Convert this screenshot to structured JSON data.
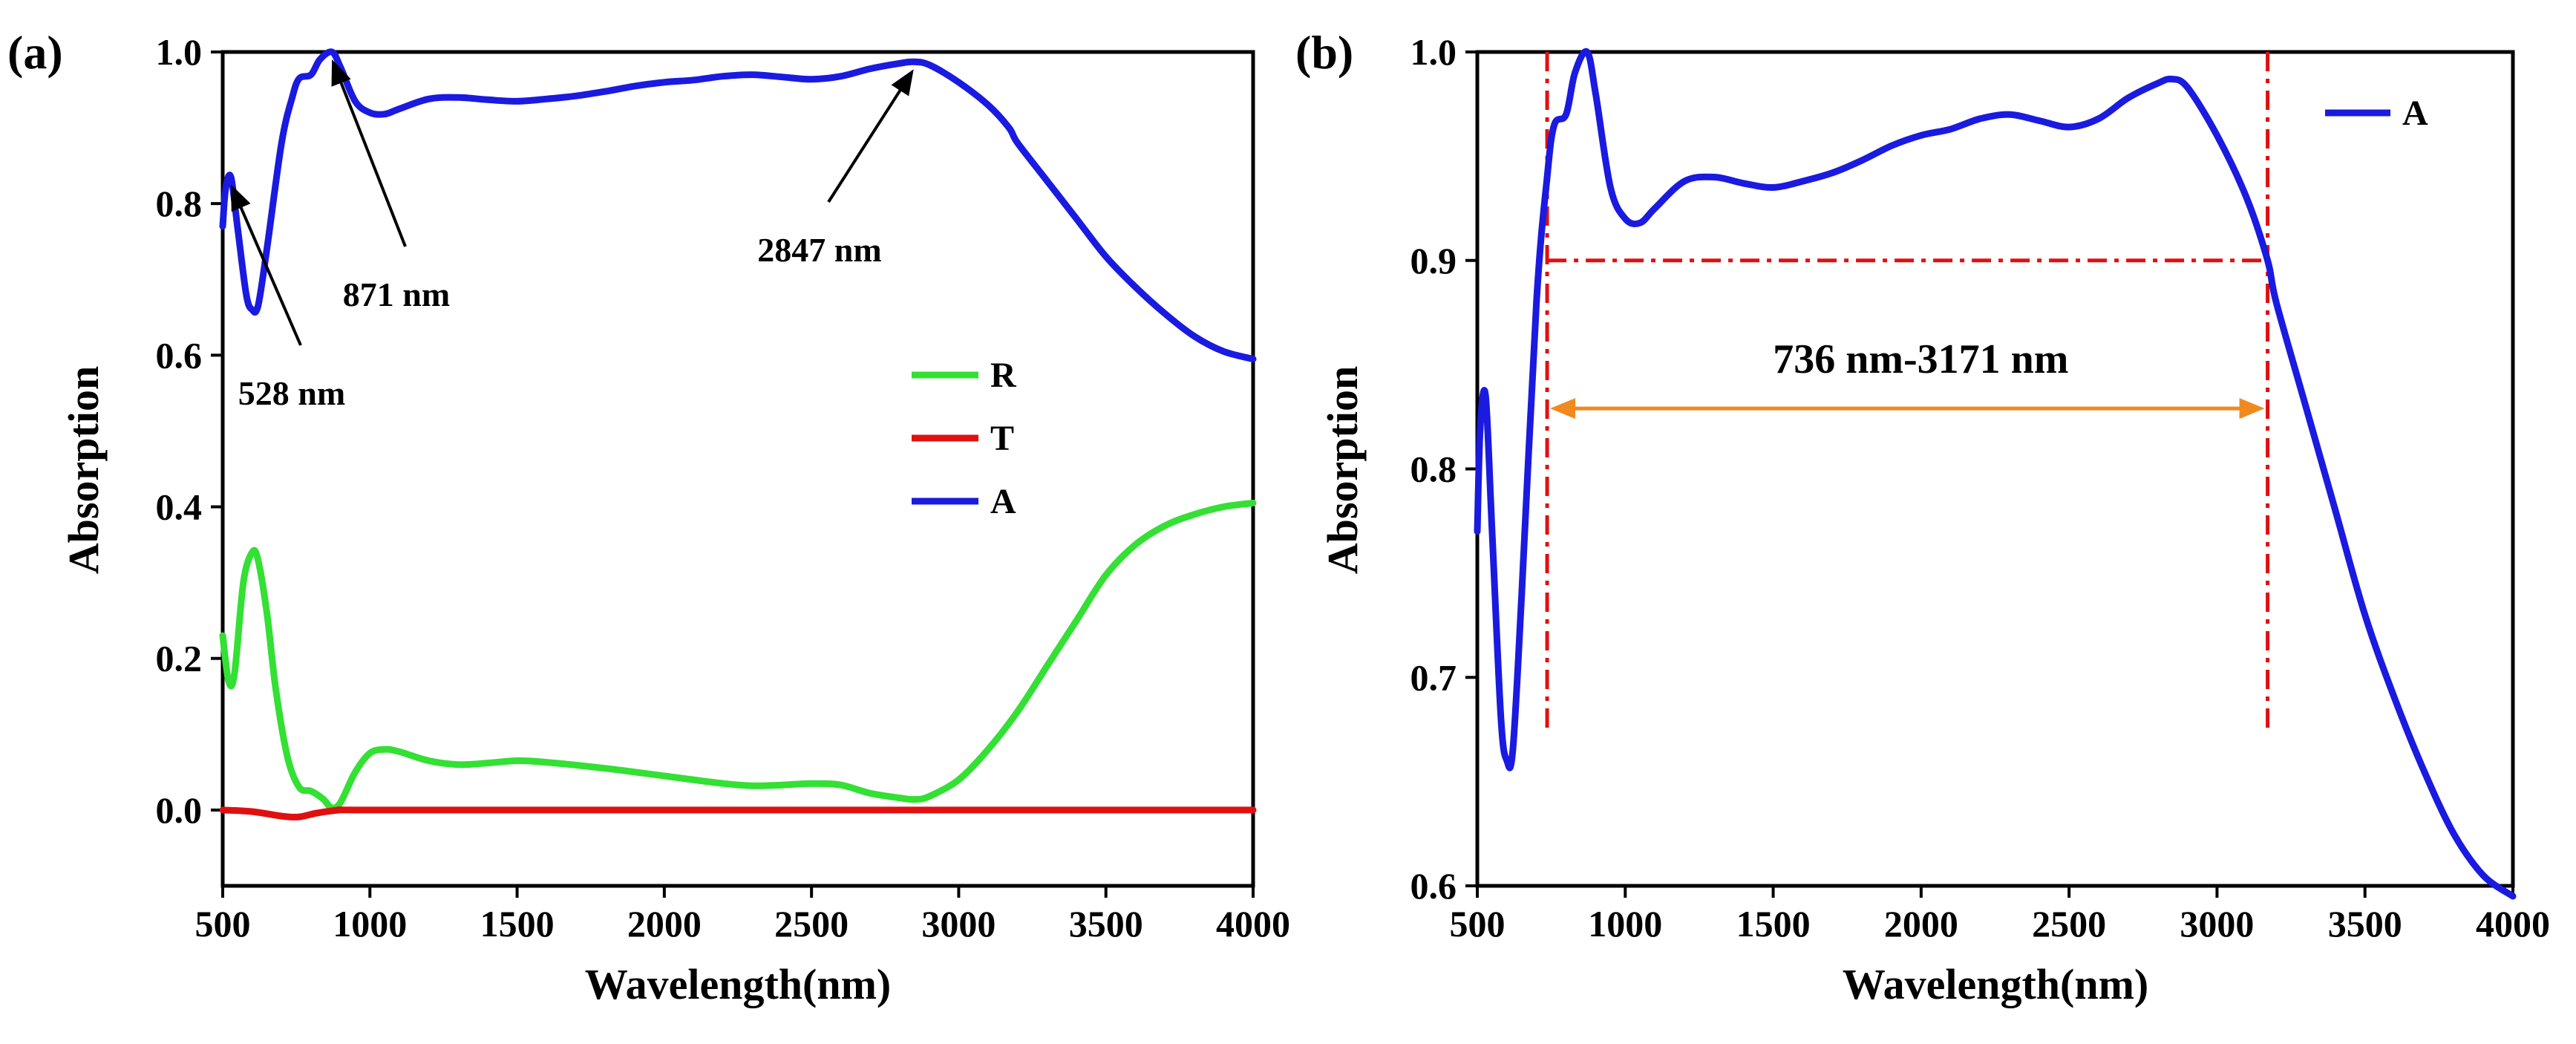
{
  "chart_data": [
    {
      "panel": "(a)",
      "type": "line",
      "xlabel": "Wavelength(nm)",
      "ylabel": "Absorption",
      "xlim": [
        500,
        4000
      ],
      "ylim": [
        -0.1,
        1.0
      ],
      "xticks": [
        500,
        1000,
        1500,
        2000,
        2500,
        3000,
        3500,
        4000
      ],
      "xtick_labels": [
        "500",
        "1000",
        "1500",
        "2000",
        "2500",
        "3000",
        "3500",
        "4000"
      ],
      "yticks": [
        0.0,
        0.2,
        0.4,
        0.6,
        0.8,
        1.0
      ],
      "ytick_labels": [
        "0.0",
        "0.2",
        "0.4",
        "0.6",
        "0.8",
        "1.0"
      ],
      "legend_position": "middle-right",
      "series": [
        {
          "name": "R",
          "color": "#33e033",
          "points": [
            [
              500,
              0.23
            ],
            [
              520,
              0.17
            ],
            [
              540,
              0.18
            ],
            [
              570,
              0.3
            ],
            [
              600,
              0.34
            ],
            [
              620,
              0.33
            ],
            [
              650,
              0.26
            ],
            [
              680,
              0.16
            ],
            [
              720,
              0.07
            ],
            [
              760,
              0.03
            ],
            [
              800,
              0.025
            ],
            [
              840,
              0.015
            ],
            [
              870,
              0.003
            ],
            [
              900,
              0.01
            ],
            [
              950,
              0.05
            ],
            [
              1000,
              0.075
            ],
            [
              1050,
              0.08
            ],
            [
              1100,
              0.077
            ],
            [
              1200,
              0.065
            ],
            [
              1300,
              0.06
            ],
            [
              1400,
              0.062
            ],
            [
              1500,
              0.065
            ],
            [
              1600,
              0.063
            ],
            [
              1800,
              0.055
            ],
            [
              2000,
              0.045
            ],
            [
              2200,
              0.035
            ],
            [
              2300,
              0.032
            ],
            [
              2400,
              0.033
            ],
            [
              2500,
              0.035
            ],
            [
              2600,
              0.033
            ],
            [
              2700,
              0.022
            ],
            [
              2800,
              0.016
            ],
            [
              2850,
              0.014
            ],
            [
              2900,
              0.018
            ],
            [
              3000,
              0.04
            ],
            [
              3100,
              0.08
            ],
            [
              3200,
              0.13
            ],
            [
              3300,
              0.19
            ],
            [
              3400,
              0.25
            ],
            [
              3500,
              0.31
            ],
            [
              3600,
              0.35
            ],
            [
              3700,
              0.375
            ],
            [
              3800,
              0.39
            ],
            [
              3900,
              0.4
            ],
            [
              4000,
              0.405
            ]
          ]
        },
        {
          "name": "T",
          "color": "#e01010",
          "points": [
            [
              500,
              0.0
            ],
            [
              600,
              -0.002
            ],
            [
              700,
              -0.008
            ],
            [
              760,
              -0.009
            ],
            [
              820,
              -0.004
            ],
            [
              900,
              0.0
            ],
            [
              1000,
              0.0
            ],
            [
              2000,
              0.0
            ],
            [
              3000,
              0.0
            ],
            [
              4000,
              0.0
            ]
          ]
        },
        {
          "name": "A",
          "color": "#1a1ae0",
          "points": [
            [
              500,
              0.77
            ],
            [
              510,
              0.82
            ],
            [
              528,
              0.835
            ],
            [
              550,
              0.77
            ],
            [
              580,
              0.68
            ],
            [
              600,
              0.66
            ],
            [
              620,
              0.665
            ],
            [
              650,
              0.74
            ],
            [
              700,
              0.88
            ],
            [
              736,
              0.94
            ],
            [
              760,
              0.965
            ],
            [
              800,
              0.97
            ],
            [
              830,
              0.99
            ],
            [
              871,
              1.0
            ],
            [
              900,
              0.98
            ],
            [
              950,
              0.935
            ],
            [
              1000,
              0.92
            ],
            [
              1050,
              0.918
            ],
            [
              1100,
              0.925
            ],
            [
              1200,
              0.938
            ],
            [
              1300,
              0.94
            ],
            [
              1400,
              0.937
            ],
            [
              1500,
              0.935
            ],
            [
              1600,
              0.938
            ],
            [
              1700,
              0.942
            ],
            [
              1800,
              0.948
            ],
            [
              1900,
              0.955
            ],
            [
              2000,
              0.96
            ],
            [
              2100,
              0.963
            ],
            [
              2200,
              0.968
            ],
            [
              2300,
              0.97
            ],
            [
              2400,
              0.967
            ],
            [
              2500,
              0.964
            ],
            [
              2600,
              0.968
            ],
            [
              2700,
              0.978
            ],
            [
              2800,
              0.985
            ],
            [
              2847,
              0.987
            ],
            [
              2900,
              0.983
            ],
            [
              3000,
              0.96
            ],
            [
              3100,
              0.93
            ],
            [
              3171,
              0.9
            ],
            [
              3200,
              0.88
            ],
            [
              3300,
              0.83
            ],
            [
              3400,
              0.78
            ],
            [
              3500,
              0.73
            ],
            [
              3600,
              0.69
            ],
            [
              3700,
              0.655
            ],
            [
              3800,
              0.625
            ],
            [
              3900,
              0.605
            ],
            [
              4000,
              0.595
            ]
          ]
        }
      ],
      "annotations": [
        {
          "text": "528 nm",
          "target_x": 528,
          "target_y": 0.835
        },
        {
          "text": "871 nm",
          "target_x": 871,
          "target_y": 1.0
        },
        {
          "text": "2847 nm",
          "target_x": 2847,
          "target_y": 0.987
        }
      ]
    },
    {
      "panel": "(b)",
      "type": "line",
      "xlabel": "Wavelength(nm)",
      "ylabel": "Absorption",
      "xlim": [
        500,
        4000
      ],
      "ylim": [
        0.6,
        1.0
      ],
      "xticks": [
        500,
        1000,
        1500,
        2000,
        2500,
        3000,
        3500,
        4000
      ],
      "xtick_labels": [
        "500",
        "1000",
        "1500",
        "2000",
        "2500",
        "3000",
        "3500",
        "4000"
      ],
      "yticks": [
        0.6,
        0.7,
        0.8,
        0.9,
        1.0
      ],
      "ytick_labels": [
        "0.6",
        "0.7",
        "0.8",
        "0.9",
        "1.0"
      ],
      "legend_position": "top-right",
      "series": [
        {
          "name": "A",
          "color": "#1a1ae0",
          "points": [
            [
              500,
              0.77
            ],
            [
              510,
              0.82
            ],
            [
              528,
              0.835
            ],
            [
              550,
              0.77
            ],
            [
              580,
              0.68
            ],
            [
              600,
              0.66
            ],
            [
              620,
              0.665
            ],
            [
              650,
              0.74
            ],
            [
              700,
              0.88
            ],
            [
              736,
              0.94
            ],
            [
              760,
              0.965
            ],
            [
              800,
              0.97
            ],
            [
              830,
              0.99
            ],
            [
              871,
              1.0
            ],
            [
              900,
              0.98
            ],
            [
              950,
              0.935
            ],
            [
              1000,
              0.92
            ],
            [
              1050,
              0.918
            ],
            [
              1100,
              0.925
            ],
            [
              1200,
              0.938
            ],
            [
              1300,
              0.94
            ],
            [
              1400,
              0.937
            ],
            [
              1500,
              0.935
            ],
            [
              1600,
              0.938
            ],
            [
              1700,
              0.942
            ],
            [
              1800,
              0.948
            ],
            [
              1900,
              0.955
            ],
            [
              2000,
              0.96
            ],
            [
              2100,
              0.963
            ],
            [
              2200,
              0.968
            ],
            [
              2300,
              0.97
            ],
            [
              2400,
              0.967
            ],
            [
              2500,
              0.964
            ],
            [
              2600,
              0.968
            ],
            [
              2700,
              0.978
            ],
            [
              2800,
              0.985
            ],
            [
              2847,
              0.987
            ],
            [
              2900,
              0.983
            ],
            [
              3000,
              0.96
            ],
            [
              3100,
              0.93
            ],
            [
              3171,
              0.9
            ],
            [
              3200,
              0.88
            ],
            [
              3300,
              0.83
            ],
            [
              3400,
              0.78
            ],
            [
              3500,
              0.73
            ],
            [
              3600,
              0.69
            ],
            [
              3700,
              0.655
            ],
            [
              3800,
              0.625
            ],
            [
              3900,
              0.605
            ],
            [
              4000,
              0.595
            ]
          ]
        }
      ],
      "reference_lines": {
        "color": "#e01010",
        "vertical_x": [
          736,
          3171
        ],
        "vertical_y_range": [
          0.675,
          1.0
        ],
        "horizontal_y": 0.9,
        "horizontal_x_range": [
          736,
          3171
        ]
      },
      "range_arrow": {
        "text": "736 nm-3171 nm",
        "x_from": 736,
        "x_to": 3171,
        "y": 0.829,
        "color": "#f08a1e"
      }
    }
  ]
}
